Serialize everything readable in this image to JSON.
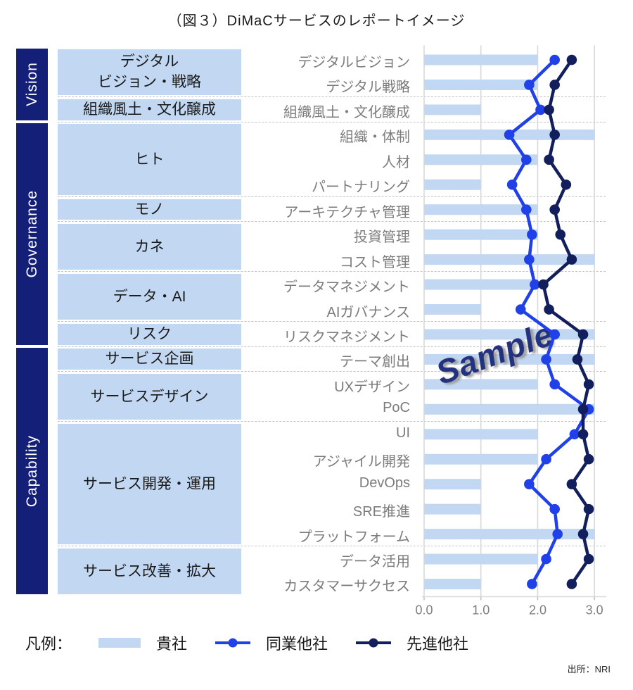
{
  "title": "（図３）DiMaCサービスのレポートイメージ",
  "watermark": "Sample",
  "source": "出所：NRI",
  "legend": {
    "label": "凡例：",
    "items": [
      {
        "name": "貴社",
        "type": "bar",
        "color": "#c2d8f2"
      },
      {
        "name": "同業他社",
        "type": "line",
        "color": "#2040e8"
      },
      {
        "name": "先進他社",
        "type": "line",
        "color": "#121f5c"
      }
    ]
  },
  "sections": [
    {
      "label": "Vision",
      "row_start": 1,
      "row_end": 3
    },
    {
      "label": "Governance",
      "row_start": 4,
      "row_end": 12
    },
    {
      "label": "Capability",
      "row_start": 13,
      "row_end": 22
    }
  ],
  "groups": [
    {
      "lines": [
        "デジタル",
        "ビジョン・戦略"
      ],
      "row_start": 1,
      "row_end": 2
    },
    {
      "lines": [
        "組織風土・文化醸成"
      ],
      "row_start": 3,
      "row_end": 3
    },
    {
      "lines": [
        "ヒト"
      ],
      "row_start": 4,
      "row_end": 6
    },
    {
      "lines": [
        "モノ"
      ],
      "row_start": 7,
      "row_end": 7
    },
    {
      "lines": [
        "カネ"
      ],
      "row_start": 8,
      "row_end": 9
    },
    {
      "lines": [
        "データ・AI"
      ],
      "row_start": 10,
      "row_end": 11
    },
    {
      "lines": [
        "リスク"
      ],
      "row_start": 12,
      "row_end": 12
    },
    {
      "lines": [
        "サービス企画"
      ],
      "row_start": 13,
      "row_end": 13
    },
    {
      "lines": [
        "サービスデザイン"
      ],
      "row_start": 14,
      "row_end": 15
    },
    {
      "lines": [
        "サービス開発・運用"
      ],
      "row_start": 16,
      "row_end": 20
    },
    {
      "lines": [
        "サービス改善・拡大"
      ],
      "row_start": 21,
      "row_end": 22
    }
  ],
  "chart_data": {
    "type": "bar",
    "orientation": "horizontal",
    "title": "（図３）DiMaCサービスのレポートイメージ",
    "categories": [
      "デジタルビジョン",
      "デジタル戦略",
      "組織風土・文化醸成",
      "組織・体制",
      "人材",
      "パートナリング",
      "アーキテクチャ管理",
      "投資管理",
      "コスト管理",
      "データマネジメント",
      "AIガバナンス",
      "リスクマネジメント",
      "テーマ創出",
      "UXデザイン",
      "PoC",
      "UI",
      "アジャイル開発",
      "DevOps",
      "SRE推進",
      "プラットフォーム",
      "データ活用",
      "カスタマーサクセス"
    ],
    "series": [
      {
        "name": "貴社",
        "type": "bar",
        "color": "#c2d8f2",
        "values": [
          2.0,
          2.0,
          1.0,
          3.0,
          2.0,
          1.0,
          2.0,
          2.0,
          3.0,
          2.0,
          1.0,
          3.0,
          3.0,
          2.0,
          3.0,
          2.0,
          2.0,
          1.0,
          1.0,
          3.0,
          2.0,
          1.0
        ]
      },
      {
        "name": "同業他社",
        "type": "line",
        "color": "#2040e8",
        "values": [
          2.3,
          1.85,
          2.05,
          1.5,
          1.8,
          1.55,
          1.8,
          1.9,
          1.85,
          1.95,
          1.7,
          2.3,
          2.15,
          2.3,
          2.9,
          2.65,
          2.15,
          1.85,
          2.3,
          2.35,
          2.15,
          1.9
        ]
      },
      {
        "name": "先進他社",
        "type": "line",
        "color": "#121f5c",
        "values": [
          2.6,
          2.3,
          2.2,
          2.3,
          2.2,
          2.5,
          2.3,
          2.4,
          2.6,
          2.1,
          2.2,
          2.8,
          2.7,
          2.9,
          2.8,
          2.8,
          2.9,
          2.6,
          2.9,
          2.8,
          2.9,
          2.6
        ]
      }
    ],
    "xlim": [
      0,
      3
    ],
    "xticks": [
      "0.0",
      "1.0",
      "2.0",
      "3.0"
    ],
    "grid": "vertical",
    "legend_position": "bottom"
  }
}
